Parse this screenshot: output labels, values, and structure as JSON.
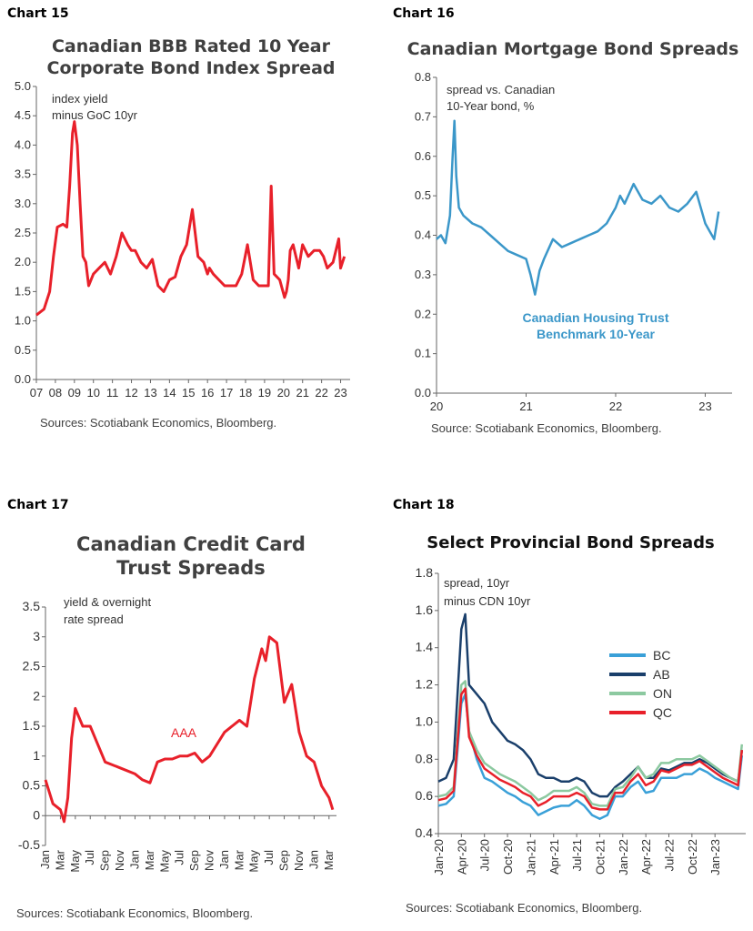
{
  "charts": [
    {
      "number": "Chart 15",
      "title_line1": "Canadian BBB Rated 10 Year",
      "title_line2": "Corporate Bond Index Spread",
      "source": "Sources: Scotiabank Economics, Bloomberg.",
      "chart_data": {
        "type": "line",
        "title": "Canadian BBB Rated 10 Year Corporate Bond Index Spread",
        "annotation": [
          "index yield",
          "minus GoC 10yr"
        ],
        "xlabel": "",
        "ylabel": "",
        "x_tick_labels": [
          "07",
          "08",
          "09",
          "10",
          "11",
          "12",
          "13",
          "14",
          "15",
          "16",
          "17",
          "18",
          "19",
          "20",
          "21",
          "22",
          "23"
        ],
        "y_tick_labels": [
          "0.0",
          "0.5",
          "1.0",
          "1.5",
          "2.0",
          "2.5",
          "3.0",
          "3.5",
          "4.0",
          "4.5",
          "5.0"
        ],
        "xlim": [
          2007,
          2023.5
        ],
        "ylim": [
          0,
          5
        ],
        "color": "#e8202a",
        "series": [
          {
            "x": [
              2007.0,
              2007.4,
              2007.7,
              2007.9,
              2008.1,
              2008.4,
              2008.6,
              2008.75,
              2008.9,
              2009.0,
              2009.15,
              2009.3,
              2009.45,
              2009.6,
              2009.75,
              2010.0,
              2010.3,
              2010.6,
              2010.9,
              2011.2,
              2011.5,
              2011.8,
              2012.0,
              2012.2,
              2012.5,
              2012.8,
              2013.1,
              2013.4,
              2013.7,
              2014.0,
              2014.3,
              2014.6,
              2014.9,
              2015.2,
              2015.5,
              2015.8,
              2016.0,
              2016.1,
              2016.3,
              2016.6,
              2016.9,
              2017.2,
              2017.5,
              2017.8,
              2018.1,
              2018.4,
              2018.7,
              2019.0,
              2019.2,
              2019.35,
              2019.5,
              2019.8,
              2020.05,
              2020.15,
              2020.25,
              2020.35,
              2020.5,
              2020.8,
              2021.0,
              2021.3,
              2021.6,
              2021.9,
              2022.1,
              2022.3,
              2022.6,
              2022.9,
              2023.0,
              2023.2
            ],
            "values": [
              1.1,
              1.2,
              1.5,
              2.1,
              2.6,
              2.65,
              2.6,
              3.3,
              4.2,
              4.4,
              4.0,
              3.0,
              2.1,
              2.0,
              1.6,
              1.8,
              1.9,
              2.0,
              1.8,
              2.1,
              2.5,
              2.3,
              2.2,
              2.2,
              2.0,
              1.9,
              2.05,
              1.6,
              1.5,
              1.7,
              1.75,
              2.1,
              2.3,
              2.9,
              2.1,
              2.0,
              1.8,
              1.9,
              1.8,
              1.7,
              1.6,
              1.6,
              1.6,
              1.8,
              2.3,
              1.7,
              1.6,
              1.6,
              1.6,
              3.3,
              1.8,
              1.7,
              1.4,
              1.5,
              1.7,
              2.2,
              2.3,
              1.9,
              2.3,
              2.1,
              2.2,
              2.2,
              2.1,
              1.9,
              2.0,
              2.4,
              1.9,
              2.1
            ]
          }
        ]
      }
    },
    {
      "number": "Chart 16",
      "title_line1": "Canadian Mortgage Bond Spreads",
      "title_line2": "",
      "source": "Source: Scotiabank Economics, Bloomberg.",
      "chart_data": {
        "type": "line",
        "title": "Canadian Mortgage Bond Spreads",
        "annotation": [
          "spread vs. Canadian",
          "10-Year bond, %"
        ],
        "series_label": [
          "Canadian Housing Trust",
          "Benchmark 10-Year"
        ],
        "xlabel": "",
        "ylabel": "",
        "x_tick_labels": [
          "20",
          "21",
          "22",
          "23"
        ],
        "y_tick_labels": [
          "0.0",
          "0.1",
          "0.2",
          "0.3",
          "0.4",
          "0.5",
          "0.6",
          "0.7",
          "0.8"
        ],
        "xlim": [
          2020,
          2023.3
        ],
        "ylim": [
          0,
          0.8
        ],
        "color": "#3b97c9",
        "series": [
          {
            "x": [
              2020.0,
              2020.05,
              2020.1,
              2020.15,
              2020.18,
              2020.2,
              2020.22,
              2020.25,
              2020.3,
              2020.4,
              2020.5,
              2020.6,
              2020.7,
              2020.8,
              2020.9,
              2021.0,
              2021.05,
              2021.1,
              2021.15,
              2021.2,
              2021.3,
              2021.4,
              2021.5,
              2021.6,
              2021.7,
              2021.8,
              2021.9,
              2022.0,
              2022.05,
              2022.1,
              2022.2,
              2022.3,
              2022.4,
              2022.5,
              2022.6,
              2022.7,
              2022.8,
              2022.9,
              2023.0,
              2023.05,
              2023.1,
              2023.15
            ],
            "values": [
              0.39,
              0.4,
              0.38,
              0.45,
              0.6,
              0.69,
              0.55,
              0.47,
              0.45,
              0.43,
              0.42,
              0.4,
              0.38,
              0.36,
              0.35,
              0.34,
              0.3,
              0.25,
              0.31,
              0.34,
              0.39,
              0.37,
              0.38,
              0.39,
              0.4,
              0.41,
              0.43,
              0.47,
              0.5,
              0.48,
              0.53,
              0.49,
              0.48,
              0.5,
              0.47,
              0.46,
              0.48,
              0.51,
              0.43,
              0.41,
              0.39,
              0.46
            ]
          }
        ]
      }
    },
    {
      "number": "Chart 17",
      "title_line1": "Canadian Credit Card",
      "title_line2": "Trust Spreads",
      "source": "Sources: Scotiabank Economics, Bloomberg.",
      "chart_data": {
        "type": "line",
        "title": "Canadian Credit Card Trust Spreads",
        "annotation": [
          "yield & overnight",
          "rate spread"
        ],
        "series_label": "AAA",
        "xlabel": "",
        "ylabel": "",
        "x_tick_labels": [
          "Jan",
          "Mar",
          "May",
          "Jul",
          "Sep",
          "Nov",
          "Jan",
          "Mar",
          "May",
          "Jul",
          "Sep",
          "Nov",
          "Jan",
          "Mar",
          "May",
          "Jul",
          "Sep",
          "Nov",
          "Jan",
          "Mar"
        ],
        "y_tick_labels": [
          "-0.5",
          "0",
          "0.5",
          "1",
          "1.5",
          "2",
          "2.5",
          "3",
          "3.5"
        ],
        "xlim": [
          0,
          39
        ],
        "ylim": [
          -0.5,
          3.5
        ],
        "color": "#e8202a",
        "series": [
          {
            "x": [
              0,
              1,
              2,
              2.5,
              3,
              3.5,
              4,
              5,
              6,
              7,
              8,
              10,
              12,
              13,
              14,
              15,
              16,
              17,
              18,
              19,
              20,
              21,
              22,
              24,
              26,
              27,
              28,
              29,
              29.5,
              30,
              31,
              32,
              33,
              34,
              35,
              36,
              37,
              38,
              38.5
            ],
            "values": [
              0.6,
              0.2,
              0.1,
              -0.1,
              0.3,
              1.3,
              1.8,
              1.5,
              1.5,
              1.2,
              0.9,
              0.8,
              0.7,
              0.6,
              0.55,
              0.9,
              0.95,
              0.95,
              1.0,
              1.0,
              1.05,
              0.9,
              1.0,
              1.4,
              1.6,
              1.5,
              2.3,
              2.8,
              2.6,
              3.0,
              2.9,
              1.9,
              2.2,
              1.4,
              1.0,
              0.9,
              0.5,
              0.3,
              0.1
            ]
          }
        ]
      }
    },
    {
      "number": "Chart 18",
      "title_line1": "Select Provincial Bond Spreads",
      "title_line2": "",
      "source": "Sources: Scotiabank Economics, Bloomberg.",
      "chart_data": {
        "type": "line",
        "title": "Select Provincial Bond Spreads",
        "annotation": [
          "spread, 10yr",
          "minus CDN 10yr"
        ],
        "xlabel": "",
        "ylabel": "",
        "x_tick_labels": [
          "Jan-20",
          "Apr-20",
          "Jul-20",
          "Oct-20",
          "Jan-21",
          "Apr-21",
          "Jul-21",
          "Oct-21",
          "Jan-22",
          "Apr-22",
          "Jul-22",
          "Oct-22",
          "Jan-23"
        ],
        "y_tick_labels": [
          "0.4",
          "0.6",
          "0.8",
          "1.0",
          "1.2",
          "1.4",
          "1.6",
          "1.8"
        ],
        "xlim": [
          0,
          40
        ],
        "ylim": [
          0.4,
          1.8
        ],
        "legend_position": "right",
        "x": [
          0,
          1,
          2,
          3,
          3.5,
          4,
          5,
          6,
          7,
          8,
          9,
          10,
          11,
          12,
          13,
          14,
          15,
          16,
          17,
          18,
          19,
          20,
          21,
          22,
          23,
          24,
          25,
          26,
          27,
          28,
          29,
          30,
          31,
          32,
          33,
          34,
          35,
          36,
          37,
          38,
          39,
          39.5
        ],
        "series": [
          {
            "name": "BC",
            "color": "#3aa0d8",
            "values": [
              0.55,
              0.56,
              0.6,
              1.1,
              1.15,
              0.95,
              0.8,
              0.7,
              0.68,
              0.65,
              0.62,
              0.6,
              0.57,
              0.55,
              0.5,
              0.52,
              0.54,
              0.55,
              0.55,
              0.58,
              0.55,
              0.5,
              0.48,
              0.5,
              0.6,
              0.6,
              0.65,
              0.68,
              0.62,
              0.63,
              0.7,
              0.7,
              0.7,
              0.72,
              0.72,
              0.75,
              0.73,
              0.7,
              0.68,
              0.66,
              0.64,
              0.82
            ]
          },
          {
            "name": "AB",
            "color": "#1a3f6b",
            "values": [
              0.68,
              0.7,
              0.8,
              1.5,
              1.58,
              1.2,
              1.15,
              1.1,
              1.0,
              0.95,
              0.9,
              0.88,
              0.85,
              0.8,
              0.72,
              0.7,
              0.7,
              0.68,
              0.68,
              0.7,
              0.68,
              0.62,
              0.6,
              0.6,
              0.65,
              0.68,
              0.72,
              0.76,
              0.7,
              0.7,
              0.75,
              0.74,
              0.76,
              0.78,
              0.78,
              0.8,
              0.78,
              0.75,
              0.72,
              0.7,
              0.68,
              0.85
            ]
          },
          {
            "name": "ON",
            "color": "#8cc9a0",
            "values": [
              0.6,
              0.61,
              0.65,
              1.2,
              1.22,
              0.95,
              0.85,
              0.78,
              0.75,
              0.72,
              0.7,
              0.68,
              0.65,
              0.62,
              0.58,
              0.6,
              0.63,
              0.63,
              0.63,
              0.65,
              0.62,
              0.56,
              0.55,
              0.55,
              0.64,
              0.65,
              0.7,
              0.76,
              0.7,
              0.72,
              0.78,
              0.78,
              0.8,
              0.8,
              0.8,
              0.82,
              0.79,
              0.76,
              0.73,
              0.7,
              0.68,
              0.88
            ]
          },
          {
            "name": "QC",
            "color": "#e8202a",
            "values": [
              0.58,
              0.59,
              0.63,
              1.15,
              1.18,
              0.92,
              0.82,
              0.75,
              0.72,
              0.69,
              0.67,
              0.65,
              0.62,
              0.6,
              0.55,
              0.57,
              0.6,
              0.6,
              0.6,
              0.62,
              0.6,
              0.54,
              0.53,
              0.53,
              0.62,
              0.62,
              0.68,
              0.72,
              0.66,
              0.68,
              0.74,
              0.73,
              0.75,
              0.77,
              0.77,
              0.79,
              0.76,
              0.73,
              0.7,
              0.68,
              0.66,
              0.85
            ]
          }
        ]
      }
    }
  ]
}
